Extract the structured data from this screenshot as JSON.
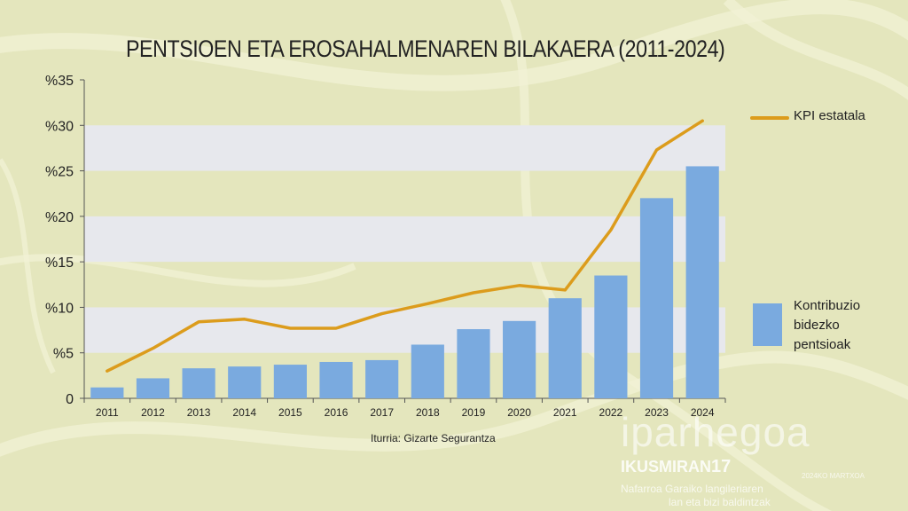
{
  "title": "PENTSIOEN ETA EROSAHALMENAREN BILAKAERA (2011-2024)",
  "source": "Iturria: Gizarte Segurantza",
  "legend": {
    "line_label": "KPI estatala",
    "bar_label": "Kontribuzio bidezko pentsioak"
  },
  "brand": {
    "name": "iparhegoa",
    "sub": "IKUSMIRAN",
    "sub_number": "17",
    "date": "2024KO MARTXOA",
    "line1": "Nafarroa Garaiko langileriaren",
    "line2": "lan eta bizi baldintzak"
  },
  "colors": {
    "background": "#e4e6bd",
    "band": "#e7e8ed",
    "bar": "#7aaadf",
    "line": "#dc9c1c",
    "axis": "#555555"
  },
  "chart_data": {
    "type": "bar",
    "title": "PENTSIOEN ETA EROSAHALMENAREN BILAKAERA (2011-2024)",
    "xlabel": "",
    "ylabel": "",
    "categories": [
      "2011",
      "2012",
      "2013",
      "2014",
      "2015",
      "2016",
      "2017",
      "2018",
      "2019",
      "2020",
      "2021",
      "2022",
      "2023",
      "2024"
    ],
    "ylim": [
      0,
      35
    ],
    "yticks": [
      0,
      5,
      10,
      15,
      20,
      25,
      30,
      35
    ],
    "ytick_labels": [
      "0",
      "%5",
      "%10",
      "%15",
      "%20",
      "%25",
      "%30",
      "%35"
    ],
    "series": [
      {
        "name": "Kontribuzio bidezko pentsioak",
        "type": "bar",
        "values": [
          1.2,
          2.2,
          3.3,
          3.5,
          3.7,
          4.0,
          4.2,
          5.9,
          7.6,
          8.5,
          11.0,
          13.5,
          22.0,
          25.5
        ]
      },
      {
        "name": "KPI estatala",
        "type": "line",
        "values": [
          3.0,
          5.5,
          8.4,
          8.7,
          7.7,
          7.7,
          9.3,
          10.4,
          11.6,
          12.4,
          11.9,
          18.5,
          27.3,
          30.5
        ]
      }
    ],
    "grid": "alternating horizontal bands",
    "legend": "right"
  }
}
